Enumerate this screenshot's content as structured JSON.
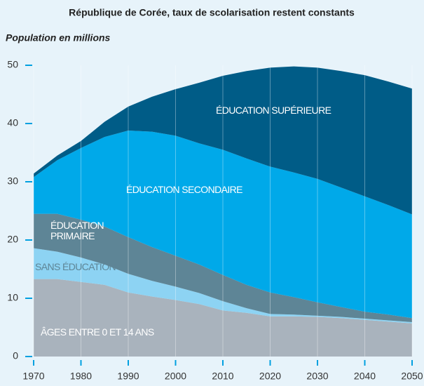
{
  "chart_data": {
    "type": "stacked_area",
    "title": "République de Corée, taux de scolarisation restent constants",
    "subtitle": "Population en millions",
    "x": [
      1970,
      1975,
      1980,
      1985,
      1990,
      1995,
      2000,
      2005,
      2010,
      2015,
      2020,
      2025,
      2030,
      2035,
      2040,
      2045,
      2050
    ],
    "xlim": [
      1970,
      2050
    ],
    "xticks": [
      1970,
      1980,
      1990,
      2000,
      2010,
      2020,
      2030,
      2040,
      2050
    ],
    "ylim": [
      0,
      50
    ],
    "yticks": [
      0,
      10,
      20,
      30,
      40,
      50
    ],
    "grid": true,
    "series": [
      {
        "name": "ÂGES ENTRE 0 ET 14 ANS",
        "color": "#a9b3bd",
        "values": [
          13.3,
          13.3,
          12.8,
          12.3,
          11,
          10.3,
          9.7,
          9,
          7.9,
          7.5,
          6.9,
          6.9,
          6.8,
          6.6,
          6.3,
          6,
          5.7
        ]
      },
      {
        "name": "SANS ÉDUCATION",
        "color": "#8dd3f3",
        "values": [
          5.3,
          4.7,
          4.2,
          3.5,
          3.2,
          2.7,
          2.3,
          1.9,
          1.6,
          0.8,
          0.4,
          0.3,
          0.2,
          0.2,
          0.2,
          0.2,
          0.2
        ]
      },
      {
        "name": "ÉDUCATION PRIMAIRE",
        "color": "#5e8596",
        "values": [
          5.9,
          6.5,
          6.5,
          6.5,
          6.3,
          5.8,
          5.3,
          4.9,
          4.5,
          4.0,
          3.7,
          3.0,
          2.3,
          1.7,
          1.2,
          1.0,
          0.7
        ]
      },
      {
        "name": "ÉDUCATION SECONDAIRE",
        "color": "#00a9e9",
        "values": [
          6.3,
          9.2,
          12.3,
          15.4,
          18.3,
          19.8,
          20.6,
          20.8,
          21.5,
          21.7,
          21.6,
          21.4,
          21.2,
          20.5,
          19.8,
          18.8,
          17.8
        ]
      },
      {
        "name": "ÉDUCATION SUPÉRIEURE",
        "color": "#005c87",
        "values": [
          0.6,
          0.8,
          1.2,
          2.6,
          4.1,
          6.0,
          8.0,
          10.4,
          12.7,
          15.0,
          17.0,
          18.2,
          19.1,
          20.0,
          20.8,
          21.2,
          21.6
        ]
      }
    ]
  }
}
